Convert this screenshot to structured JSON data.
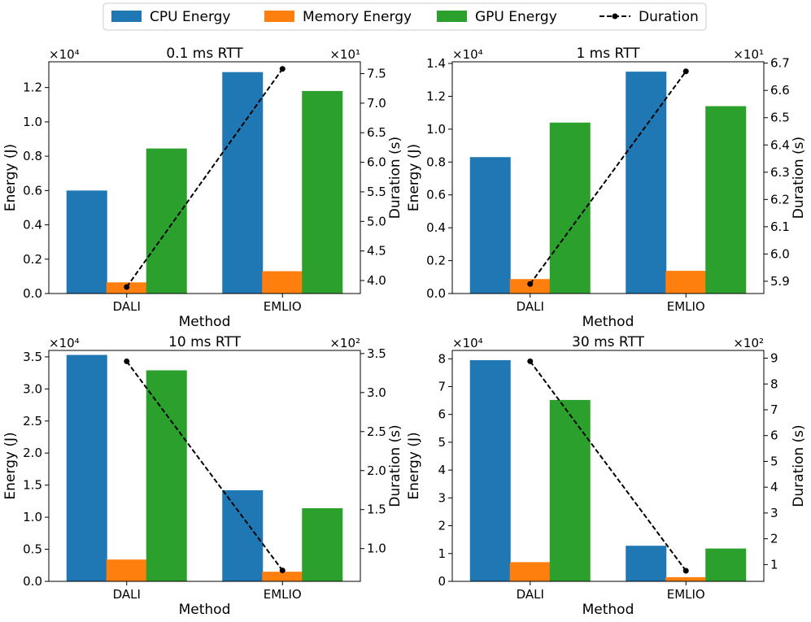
{
  "legend": {
    "items": [
      {
        "label": "CPU Energy",
        "color": "#1f77b4",
        "kind": "patch"
      },
      {
        "label": "Memory Energy",
        "color": "#ff7f0e",
        "kind": "patch"
      },
      {
        "label": "GPU Energy",
        "color": "#2ca02c",
        "kind": "patch"
      },
      {
        "label": "Duration",
        "color": "#000000",
        "kind": "line"
      }
    ]
  },
  "chart_data": [
    {
      "type": "bar",
      "title": "0.1 ms RTT",
      "xlabel": "Method",
      "ylabel": "Energy (J)",
      "y2label": "Duration (s)",
      "categories": [
        "DALI",
        "EMLIO"
      ],
      "series": [
        {
          "name": "CPU Energy",
          "values": [
            6000,
            12900
          ]
        },
        {
          "name": "Memory Energy",
          "values": [
            650,
            1300
          ]
        },
        {
          "name": "GPU Energy",
          "values": [
            8450,
            11800
          ]
        }
      ],
      "line": {
        "name": "Duration",
        "values": [
          38.9,
          75.8
        ]
      },
      "ylim": [
        0,
        13500
      ],
      "y2lim": [
        37.8,
        77.0
      ],
      "y_multiplier_label": "×10⁴",
      "y2_multiplier_label": "×10¹",
      "yticks": [
        0,
        2000,
        4000,
        6000,
        8000,
        10000,
        12000
      ],
      "ytick_labels": [
        "0.0",
        "0.2",
        "0.4",
        "0.6",
        "0.8",
        "1.0",
        "1.2"
      ],
      "y2ticks": [
        40,
        45,
        50,
        55,
        60,
        65,
        70,
        75
      ],
      "y2tick_labels": [
        "4.0",
        "4.5",
        "5.0",
        "5.5",
        "6.0",
        "6.5",
        "7.0",
        "7.5"
      ]
    },
    {
      "type": "bar",
      "title": "1 ms RTT",
      "xlabel": "Method",
      "ylabel": "Energy (J)",
      "y2label": "Duration (s)",
      "categories": [
        "DALI",
        "EMLIO"
      ],
      "series": [
        {
          "name": "CPU Energy",
          "values": [
            8300,
            13500
          ]
        },
        {
          "name": "Memory Energy",
          "values": [
            880,
            1380
          ]
        },
        {
          "name": "GPU Energy",
          "values": [
            10400,
            11400
          ]
        }
      ],
      "line": {
        "name": "Duration",
        "values": [
          58.9,
          66.7
        ]
      },
      "ylim": [
        0,
        14100
      ],
      "y2lim": [
        58.55,
        67.05
      ],
      "y_multiplier_label": "×10⁴",
      "y2_multiplier_label": "×10¹",
      "yticks": [
        0,
        2000,
        4000,
        6000,
        8000,
        10000,
        12000,
        14000
      ],
      "ytick_labels": [
        "0.0",
        "0.2",
        "0.4",
        "0.6",
        "0.8",
        "1.0",
        "1.2",
        "1.4"
      ],
      "y2ticks": [
        59,
        60,
        61,
        62,
        63,
        64,
        65,
        66,
        67
      ],
      "y2tick_labels": [
        "5.9",
        "6.0",
        "6.1",
        "6.2",
        "6.3",
        "6.4",
        "6.5",
        "6.6",
        "6.7"
      ]
    },
    {
      "type": "bar",
      "title": "10 ms RTT",
      "xlabel": "Method",
      "ylabel": "Energy (J)",
      "y2label": "Duration (s)",
      "categories": [
        "DALI",
        "EMLIO"
      ],
      "series": [
        {
          "name": "CPU Energy",
          "values": [
            35300,
            14200
          ]
        },
        {
          "name": "Memory Energy",
          "values": [
            3400,
            1500
          ]
        },
        {
          "name": "GPU Energy",
          "values": [
            32900,
            11400
          ]
        }
      ],
      "line": {
        "name": "Duration",
        "values": [
          340,
          72
        ]
      },
      "ylim": [
        0,
        36000
      ],
      "y2lim": [
        58,
        354
      ],
      "y_multiplier_label": "×10⁴",
      "y2_multiplier_label": "×10²",
      "yticks": [
        0,
        5000,
        10000,
        15000,
        20000,
        25000,
        30000,
        35000
      ],
      "ytick_labels": [
        "0.0",
        "0.5",
        "1.0",
        "1.5",
        "2.0",
        "2.5",
        "3.0",
        "3.5"
      ],
      "y2ticks": [
        100,
        150,
        200,
        250,
        300,
        350
      ],
      "y2tick_labels": [
        "1.0",
        "1.5",
        "2.0",
        "2.5",
        "3.0",
        "3.5"
      ]
    },
    {
      "type": "bar",
      "title": "30 ms RTT",
      "xlabel": "Method",
      "ylabel": "Energy (J)",
      "y2label": "Duration (s)",
      "categories": [
        "DALI",
        "EMLIO"
      ],
      "series": [
        {
          "name": "CPU Energy",
          "values": [
            79500,
            12800
          ]
        },
        {
          "name": "Memory Energy",
          "values": [
            6900,
            1500
          ]
        },
        {
          "name": "GPU Energy",
          "values": [
            65200,
            11800
          ]
        }
      ],
      "line": {
        "name": "Duration",
        "values": [
          888,
          76
        ]
      },
      "ylim": [
        0,
        83000
      ],
      "y2lim": [
        35,
        930
      ],
      "y_multiplier_label": "×10⁴",
      "y2_multiplier_label": "×10²",
      "yticks": [
        0,
        10000,
        20000,
        30000,
        40000,
        50000,
        60000,
        70000,
        80000
      ],
      "ytick_labels": [
        "0",
        "1",
        "2",
        "3",
        "4",
        "5",
        "6",
        "7",
        "8"
      ],
      "y2ticks": [
        100,
        200,
        300,
        400,
        500,
        600,
        700,
        800,
        900
      ],
      "y2tick_labels": [
        "1",
        "2",
        "3",
        "4",
        "5",
        "6",
        "7",
        "8",
        "9"
      ]
    }
  ]
}
